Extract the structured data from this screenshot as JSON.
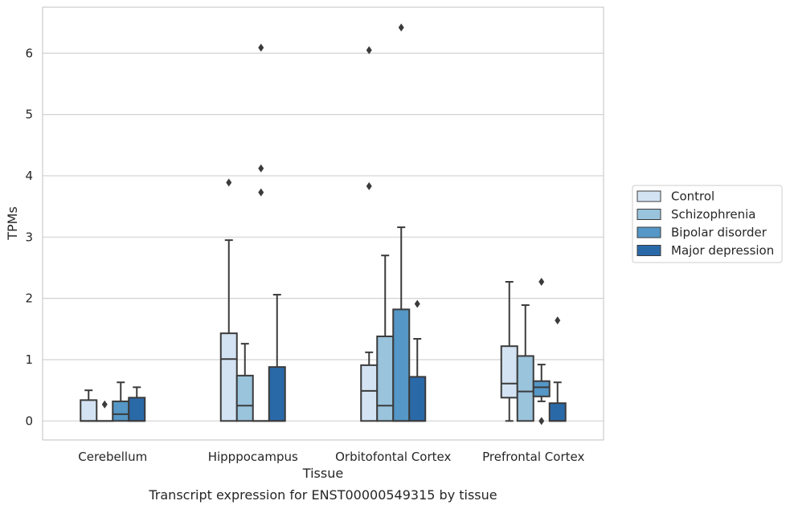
{
  "chart_data": {
    "type": "box",
    "title": "",
    "caption": "Transcript expression for ENST00000549315 by tissue",
    "xlabel": "Tissue",
    "ylabel": "TPMs",
    "ylim": [
      -0.31,
      6.75
    ],
    "yticks": [
      0,
      1,
      2,
      3,
      4,
      5,
      6
    ],
    "grid": "horizontal",
    "legend_position": "outside-right",
    "categories": [
      "Cerebellum",
      "Hipppocampus",
      "Orbitofontal Cortex",
      "Prefrontal Cortex"
    ],
    "series": [
      {
        "name": "Control",
        "color": "#d3e3f3",
        "boxes": [
          {
            "q1": 0.0,
            "median": 0.0,
            "q3": 0.34,
            "whislo": 0.0,
            "whishi": 0.5,
            "fliers": []
          },
          {
            "q1": 0.0,
            "median": 1.01,
            "q3": 1.43,
            "whislo": 0.0,
            "whishi": 2.95,
            "fliers": [
              3.89
            ]
          },
          {
            "q1": 0.0,
            "median": 0.49,
            "q3": 0.91,
            "whislo": 0.0,
            "whishi": 1.12,
            "fliers": [
              3.83,
              6.05
            ]
          },
          {
            "q1": 0.38,
            "median": 0.61,
            "q3": 1.22,
            "whislo": 0.0,
            "whishi": 2.27,
            "fliers": []
          }
        ]
      },
      {
        "name": "Schizophrenia",
        "color": "#9ac3dc",
        "boxes": [
          {
            "q1": 0.0,
            "median": 0.0,
            "q3": 0.0,
            "whislo": 0.0,
            "whishi": 0.0,
            "fliers": [
              0.27
            ]
          },
          {
            "q1": 0.0,
            "median": 0.25,
            "q3": 0.74,
            "whislo": 0.0,
            "whishi": 1.26,
            "fliers": []
          },
          {
            "q1": 0.0,
            "median": 0.25,
            "q3": 1.38,
            "whislo": 0.0,
            "whishi": 2.7,
            "fliers": []
          },
          {
            "q1": 0.0,
            "median": 0.48,
            "q3": 1.06,
            "whislo": 0.0,
            "whishi": 1.89,
            "fliers": []
          }
        ]
      },
      {
        "name": "Bipolar disorder",
        "color": "#5597c6",
        "boxes": [
          {
            "q1": 0.0,
            "median": 0.11,
            "q3": 0.32,
            "whislo": 0.0,
            "whishi": 0.63,
            "fliers": []
          },
          {
            "q1": 0.0,
            "median": 0.0,
            "q3": 0.0,
            "whislo": 0.0,
            "whishi": 0.0,
            "fliers": [
              3.73,
              4.12,
              6.09
            ]
          },
          {
            "q1": 0.0,
            "median": 0.0,
            "q3": 1.82,
            "whislo": 0.0,
            "whishi": 3.16,
            "fliers": [
              6.42
            ]
          },
          {
            "q1": 0.4,
            "median": 0.55,
            "q3": 0.65,
            "whislo": 0.32,
            "whishi": 0.92,
            "fliers": [
              0.0,
              2.27
            ]
          }
        ]
      },
      {
        "name": "Major depression",
        "color": "#2a69a8",
        "boxes": [
          {
            "q1": 0.0,
            "median": 0.0,
            "q3": 0.38,
            "whislo": 0.0,
            "whishi": 0.55,
            "fliers": []
          },
          {
            "q1": 0.0,
            "median": 0.0,
            "q3": 0.88,
            "whislo": 0.0,
            "whishi": 2.06,
            "fliers": []
          },
          {
            "q1": 0.0,
            "median": 0.0,
            "q3": 0.72,
            "whislo": 0.0,
            "whishi": 1.34,
            "fliers": [
              1.91
            ]
          },
          {
            "q1": 0.0,
            "median": 0.0,
            "q3": 0.29,
            "whislo": 0.0,
            "whishi": 0.63,
            "fliers": [
              1.64
            ]
          }
        ]
      }
    ]
  }
}
